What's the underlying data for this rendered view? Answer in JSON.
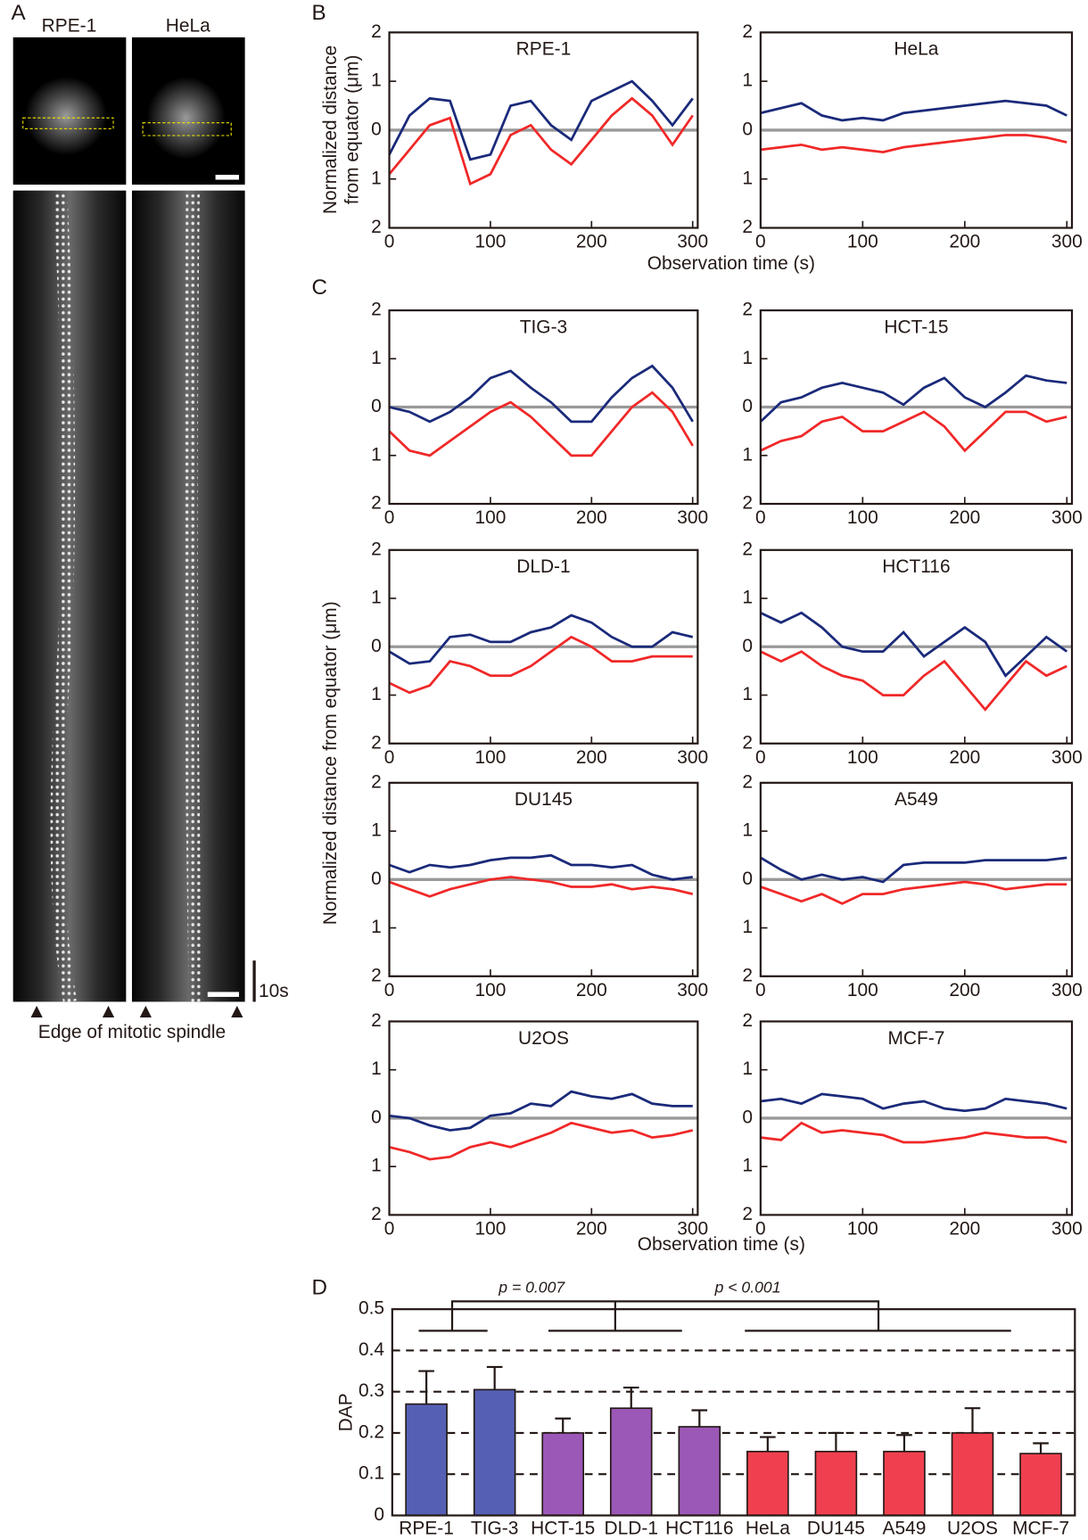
{
  "figure": {
    "panels": [
      "A",
      "B",
      "C",
      "D"
    ],
    "panel_a": {
      "cells": [
        "RPE-1",
        "HeLa"
      ],
      "scale_time": "10s",
      "caption": "Edge of mitotic spindle"
    },
    "b_ylabel": [
      "Normalized distance",
      "from equator (μm)"
    ],
    "b_xlabel": "Observation time (s)",
    "c_ylabel": "Normalized distance from equator (μm)",
    "c_xlabel": "Observation time (s)"
  },
  "chart_data": [
    {
      "type": "line",
      "title": "RPE-1",
      "x": [
        0,
        20,
        40,
        60,
        80,
        100,
        120,
        140,
        160,
        180,
        200,
        220,
        240,
        260,
        280,
        300
      ],
      "xlim": [
        0,
        305
      ],
      "xticks": [
        0,
        100,
        200,
        300
      ],
      "ylim": [
        -2,
        2
      ],
      "yticks": [
        {
          "value": -2,
          "label": "2"
        },
        {
          "value": -1,
          "label": "1"
        },
        0,
        1,
        2
      ],
      "zero_line": true,
      "series": [
        {
          "color": "#1a2a7a",
          "values": [
            -0.5,
            0.3,
            0.65,
            0.6,
            -0.6,
            -0.5,
            0.5,
            0.6,
            0.1,
            -0.2,
            0.6,
            0.8,
            1.0,
            0.6,
            0.1,
            0.65
          ]
        },
        {
          "color": "#f02828",
          "values": [
            -0.9,
            -0.4,
            0.1,
            0.25,
            -1.1,
            -0.9,
            -0.1,
            0.1,
            -0.4,
            -0.7,
            -0.2,
            0.3,
            0.65,
            0.3,
            -0.3,
            0.3
          ]
        }
      ]
    },
    {
      "type": "line",
      "title": "HeLa",
      "x": [
        0,
        20,
        40,
        60,
        80,
        100,
        120,
        140,
        160,
        180,
        200,
        220,
        240,
        260,
        280,
        300
      ],
      "xlim": [
        0,
        305
      ],
      "xticks": [
        0,
        100,
        200,
        300
      ],
      "ylim": [
        -2,
        2
      ],
      "yticks": [
        {
          "value": -2,
          "label": "2"
        },
        {
          "value": -1,
          "label": "1"
        },
        0,
        1,
        2
      ],
      "zero_line": true,
      "series": [
        {
          "color": "#1a2a7a",
          "values": [
            0.35,
            0.45,
            0.55,
            0.3,
            0.2,
            0.25,
            0.2,
            0.35,
            0.4,
            0.45,
            0.5,
            0.55,
            0.6,
            0.55,
            0.5,
            0.3
          ]
        },
        {
          "color": "#f02828",
          "values": [
            -0.4,
            -0.35,
            -0.3,
            -0.4,
            -0.35,
            -0.4,
            -0.45,
            -0.35,
            -0.3,
            -0.25,
            -0.2,
            -0.15,
            -0.1,
            -0.1,
            -0.15,
            -0.25
          ]
        }
      ]
    },
    {
      "type": "line",
      "title": "TIG-3",
      "x": [
        0,
        20,
        40,
        60,
        80,
        100,
        120,
        140,
        160,
        180,
        200,
        220,
        240,
        260,
        280,
        300
      ],
      "xlim": [
        0,
        305
      ],
      "xticks": [
        0,
        100,
        200,
        300
      ],
      "ylim": [
        -2,
        2
      ],
      "yticks": [
        {
          "value": -2,
          "label": "2"
        },
        {
          "value": -1,
          "label": "1"
        },
        0,
        1,
        2
      ],
      "zero_line": true,
      "series": [
        {
          "color": "#1a2a7a",
          "values": [
            0,
            -0.1,
            -0.3,
            -0.1,
            0.2,
            0.6,
            0.75,
            0.4,
            0.1,
            -0.3,
            -0.3,
            0.2,
            0.6,
            0.85,
            0.4,
            -0.3
          ]
        },
        {
          "color": "#f02828",
          "values": [
            -0.5,
            -0.9,
            -1.0,
            -0.7,
            -0.4,
            -0.1,
            0.1,
            -0.2,
            -0.6,
            -1.0,
            -1.0,
            -0.5,
            0.0,
            0.3,
            -0.1,
            -0.8
          ]
        }
      ]
    },
    {
      "type": "line",
      "title": "HCT-15",
      "x": [
        0,
        20,
        40,
        60,
        80,
        100,
        120,
        140,
        160,
        180,
        200,
        220,
        240,
        260,
        280,
        300
      ],
      "xlim": [
        0,
        305
      ],
      "xticks": [
        0,
        100,
        200,
        300
      ],
      "ylim": [
        -2,
        2
      ],
      "yticks": [
        {
          "value": -2,
          "label": "2"
        },
        {
          "value": -1,
          "label": "1"
        },
        0,
        1,
        2
      ],
      "zero_line": true,
      "series": [
        {
          "color": "#1a2a7a",
          "values": [
            -0.3,
            0.1,
            0.2,
            0.4,
            0.5,
            0.4,
            0.3,
            0.05,
            0.4,
            0.6,
            0.2,
            0.0,
            0.3,
            0.65,
            0.55,
            0.5
          ]
        },
        {
          "color": "#f02828",
          "values": [
            -0.9,
            -0.7,
            -0.6,
            -0.3,
            -0.2,
            -0.5,
            -0.5,
            -0.3,
            -0.1,
            -0.4,
            -0.9,
            -0.5,
            -0.1,
            -0.1,
            -0.3,
            -0.2
          ]
        }
      ]
    },
    {
      "type": "line",
      "title": "DLD-1",
      "x": [
        0,
        20,
        40,
        60,
        80,
        100,
        120,
        140,
        160,
        180,
        200,
        220,
        240,
        260,
        280,
        300
      ],
      "xlim": [
        0,
        305
      ],
      "xticks": [
        0,
        100,
        200,
        300
      ],
      "ylim": [
        -2,
        2
      ],
      "yticks": [
        {
          "value": -2,
          "label": "2"
        },
        {
          "value": -1,
          "label": "1"
        },
        0,
        1,
        2
      ],
      "zero_line": true,
      "series": [
        {
          "color": "#1a2a7a",
          "values": [
            -0.1,
            -0.35,
            -0.3,
            0.2,
            0.25,
            0.1,
            0.1,
            0.3,
            0.4,
            0.65,
            0.5,
            0.2,
            0.0,
            0.0,
            0.3,
            0.2
          ]
        },
        {
          "color": "#f02828",
          "values": [
            -0.75,
            -0.95,
            -0.8,
            -0.3,
            -0.4,
            -0.6,
            -0.6,
            -0.4,
            -0.1,
            0.2,
            0.0,
            -0.3,
            -0.3,
            -0.2,
            -0.2,
            -0.2
          ]
        }
      ]
    },
    {
      "type": "line",
      "title": "HCT116",
      "x": [
        0,
        20,
        40,
        60,
        80,
        100,
        120,
        140,
        160,
        180,
        200,
        220,
        240,
        260,
        280,
        300
      ],
      "xlim": [
        0,
        305
      ],
      "xticks": [
        0,
        100,
        200,
        300
      ],
      "ylim": [
        -2,
        2
      ],
      "yticks": [
        {
          "value": -2,
          "label": "2"
        },
        {
          "value": -1,
          "label": "1"
        },
        0,
        1,
        2
      ],
      "zero_line": true,
      "series": [
        {
          "color": "#1a2a7a",
          "values": [
            0.7,
            0.5,
            0.7,
            0.4,
            0.0,
            -0.1,
            -0.1,
            0.3,
            -0.2,
            0.1,
            0.4,
            0.1,
            -0.6,
            -0.2,
            0.2,
            -0.1
          ]
        },
        {
          "color": "#f02828",
          "values": [
            -0.1,
            -0.3,
            -0.1,
            -0.4,
            -0.6,
            -0.7,
            -1.0,
            -1.0,
            -0.6,
            -0.3,
            -0.8,
            -1.3,
            -0.8,
            -0.3,
            -0.6,
            -0.4
          ]
        }
      ]
    },
    {
      "type": "line",
      "title": "DU145",
      "x": [
        0,
        20,
        40,
        60,
        80,
        100,
        120,
        140,
        160,
        180,
        200,
        220,
        240,
        260,
        280,
        300
      ],
      "xlim": [
        0,
        305
      ],
      "xticks": [
        0,
        100,
        200,
        300
      ],
      "ylim": [
        -2,
        2
      ],
      "yticks": [
        {
          "value": -2,
          "label": "2"
        },
        {
          "value": -1,
          "label": "1"
        },
        0,
        1,
        2
      ],
      "zero_line": true,
      "series": [
        {
          "color": "#1a2a7a",
          "values": [
            0.3,
            0.15,
            0.3,
            0.25,
            0.3,
            0.4,
            0.45,
            0.45,
            0.5,
            0.3,
            0.3,
            0.25,
            0.3,
            0.1,
            0.0,
            0.05
          ]
        },
        {
          "color": "#f02828",
          "values": [
            -0.05,
            -0.2,
            -0.35,
            -0.2,
            -0.1,
            0.0,
            0.05,
            0.0,
            -0.05,
            -0.15,
            -0.15,
            -0.1,
            -0.2,
            -0.15,
            -0.2,
            -0.3
          ]
        }
      ]
    },
    {
      "type": "line",
      "title": "A549",
      "x": [
        0,
        20,
        40,
        60,
        80,
        100,
        120,
        140,
        160,
        180,
        200,
        220,
        240,
        260,
        280,
        300
      ],
      "xlim": [
        0,
        305
      ],
      "xticks": [
        0,
        100,
        200,
        300
      ],
      "ylim": [
        -2,
        2
      ],
      "yticks": [
        {
          "value": -2,
          "label": "2"
        },
        {
          "value": -1,
          "label": "1"
        },
        0,
        1,
        2
      ],
      "zero_line": true,
      "series": [
        {
          "color": "#1a2a7a",
          "values": [
            0.45,
            0.2,
            0.0,
            0.1,
            0.0,
            0.05,
            -0.05,
            0.3,
            0.35,
            0.35,
            0.35,
            0.4,
            0.4,
            0.4,
            0.4,
            0.45
          ]
        },
        {
          "color": "#f02828",
          "values": [
            -0.15,
            -0.3,
            -0.45,
            -0.3,
            -0.5,
            -0.3,
            -0.3,
            -0.2,
            -0.15,
            -0.1,
            -0.05,
            -0.1,
            -0.2,
            -0.15,
            -0.1,
            -0.1
          ]
        }
      ]
    },
    {
      "type": "line",
      "title": "U2OS",
      "x": [
        0,
        20,
        40,
        60,
        80,
        100,
        120,
        140,
        160,
        180,
        200,
        220,
        240,
        260,
        280,
        300
      ],
      "xlim": [
        0,
        305
      ],
      "xticks": [
        0,
        100,
        200,
        300
      ],
      "ylim": [
        -2,
        2
      ],
      "yticks": [
        {
          "value": -2,
          "label": "2"
        },
        {
          "value": -1,
          "label": "1"
        },
        0,
        1,
        2
      ],
      "zero_line": true,
      "series": [
        {
          "color": "#1a2a7a",
          "values": [
            0.05,
            0.0,
            -0.15,
            -0.25,
            -0.2,
            0.05,
            0.1,
            0.3,
            0.25,
            0.55,
            0.45,
            0.4,
            0.5,
            0.3,
            0.25,
            0.25
          ]
        },
        {
          "color": "#f02828",
          "values": [
            -0.6,
            -0.7,
            -0.85,
            -0.8,
            -0.6,
            -0.5,
            -0.6,
            -0.45,
            -0.3,
            -0.1,
            -0.2,
            -0.3,
            -0.25,
            -0.4,
            -0.35,
            -0.25
          ]
        }
      ]
    },
    {
      "type": "line",
      "title": "MCF-7",
      "x": [
        0,
        20,
        40,
        60,
        80,
        100,
        120,
        140,
        160,
        180,
        200,
        220,
        240,
        260,
        280,
        300
      ],
      "xlim": [
        0,
        305
      ],
      "xticks": [
        0,
        100,
        200,
        300
      ],
      "ylim": [
        -2,
        2
      ],
      "yticks": [
        {
          "value": -2,
          "label": "2"
        },
        {
          "value": -1,
          "label": "1"
        },
        0,
        1,
        2
      ],
      "zero_line": true,
      "series": [
        {
          "color": "#1a2a7a",
          "values": [
            0.35,
            0.4,
            0.3,
            0.5,
            0.45,
            0.4,
            0.2,
            0.3,
            0.35,
            0.2,
            0.15,
            0.2,
            0.4,
            0.35,
            0.3,
            0.2
          ]
        },
        {
          "color": "#f02828",
          "values": [
            -0.4,
            -0.45,
            -0.1,
            -0.3,
            -0.25,
            -0.3,
            -0.35,
            -0.5,
            -0.5,
            -0.45,
            -0.4,
            -0.3,
            -0.35,
            -0.4,
            -0.4,
            -0.5
          ]
        }
      ]
    },
    {
      "type": "bar",
      "ylabel": "DAP",
      "categories": [
        "RPE-1",
        "TIG-3",
        "HCT-15",
        "DLD-1",
        "HCT116",
        "HeLa",
        "DU145",
        "A549",
        "U2OS",
        "MCF-7"
      ],
      "values": [
        0.27,
        0.305,
        0.2,
        0.26,
        0.215,
        0.155,
        0.155,
        0.155,
        0.2,
        0.15
      ],
      "errors": [
        0.08,
        0.055,
        0.035,
        0.05,
        0.04,
        0.035,
        0.045,
        0.04,
        0.06,
        0.025
      ],
      "colors": [
        "#5560b5",
        "#5560b5",
        "#9b58b6",
        "#9b58b6",
        "#9b58b6",
        "#f0404f",
        "#f0404f",
        "#f0404f",
        "#f0404f",
        "#f0404f"
      ],
      "ylim": [
        0,
        0.5
      ],
      "yticks": [
        0,
        0.1,
        0.2,
        0.3,
        0.4,
        0.5
      ],
      "grid": true,
      "annotations": [
        "p = 0.007",
        "p < 0.001"
      ]
    }
  ]
}
